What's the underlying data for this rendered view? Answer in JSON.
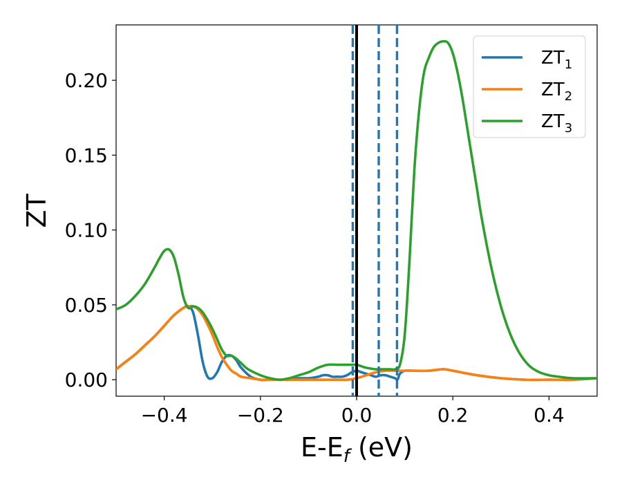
{
  "chart_data": {
    "type": "line",
    "xlabel": {
      "main": "E-E",
      "sub": "f",
      "unit": " (eV)"
    },
    "ylabel": "ZT",
    "xlim": [
      -0.5,
      0.5
    ],
    "ylim": [
      -0.011,
      0.237
    ],
    "xticks": [
      -0.4,
      -0.2,
      0.0,
      0.2,
      0.4
    ],
    "xtick_labels": [
      "−0.4",
      "−0.2",
      "0.0",
      "0.2",
      "0.4"
    ],
    "yticks": [
      0.0,
      0.05,
      0.1,
      0.15,
      0.2
    ],
    "ytick_labels": [
      "0.00",
      "0.05",
      "0.10",
      "0.15",
      "0.20"
    ],
    "grid": false,
    "legend_position": "top-right",
    "vlines": [
      {
        "x": 0.0,
        "style": "solid",
        "color": "#000000"
      },
      {
        "x": -0.008,
        "style": "dashed",
        "color": "#1f77b4"
      },
      {
        "x": 0.046,
        "style": "dashed",
        "color": "#1f77b4"
      },
      {
        "x": 0.084,
        "style": "dashed",
        "color": "#1f77b4"
      }
    ],
    "series": [
      {
        "name": "ZT",
        "sub": "1",
        "color": "#1f77b4",
        "x": [
          -0.5,
          -0.48,
          -0.46,
          -0.44,
          -0.42,
          -0.4,
          -0.38,
          -0.36,
          -0.35,
          -0.34,
          -0.33,
          -0.32,
          -0.31,
          -0.3,
          -0.29,
          -0.28,
          -0.27,
          -0.26,
          -0.25,
          -0.24,
          -0.22,
          -0.2,
          -0.18,
          -0.16,
          -0.14,
          -0.12,
          -0.1,
          -0.08,
          -0.07,
          -0.06,
          -0.05,
          -0.04,
          -0.03,
          -0.02,
          -0.01,
          0.0,
          0.01,
          0.02,
          0.03,
          0.04,
          0.05,
          0.06,
          0.07,
          0.08,
          0.085,
          0.09,
          0.1,
          0.12,
          0.15,
          0.18,
          0.2,
          0.25,
          0.3,
          0.35,
          0.4,
          0.45,
          0.5
        ],
        "y": [
          0.007,
          0.012,
          0.017,
          0.023,
          0.029,
          0.036,
          0.043,
          0.048,
          0.049,
          0.045,
          0.03,
          0.012,
          0.002,
          0.001,
          0.005,
          0.012,
          0.016,
          0.016,
          0.013,
          0.008,
          0.002,
          0.0,
          0.0,
          0.0,
          0.0,
          0.001,
          0.001,
          0.002,
          0.003,
          0.003,
          0.002,
          0.002,
          0.002,
          0.003,
          0.005,
          0.006,
          0.005,
          0.004,
          0.003,
          0.002,
          0.003,
          0.003,
          0.002,
          0.001,
          0.0,
          0.004,
          0.006,
          0.006,
          0.006,
          0.007,
          0.006,
          0.003,
          0.001,
          0.0,
          0.0,
          0.0,
          0.001
        ]
      },
      {
        "name": "ZT",
        "sub": "2",
        "color": "#ff7f0e",
        "x": [
          -0.5,
          -0.48,
          -0.46,
          -0.44,
          -0.42,
          -0.4,
          -0.38,
          -0.36,
          -0.35,
          -0.34,
          -0.33,
          -0.32,
          -0.31,
          -0.3,
          -0.29,
          -0.28,
          -0.27,
          -0.26,
          -0.25,
          -0.24,
          -0.22,
          -0.2,
          -0.18,
          -0.16,
          -0.14,
          -0.12,
          -0.1,
          -0.08,
          -0.06,
          -0.04,
          -0.02,
          0.0,
          0.02,
          0.04,
          0.06,
          0.08,
          0.1,
          0.12,
          0.15,
          0.18,
          0.2,
          0.25,
          0.3,
          0.35,
          0.4,
          0.45,
          0.5
        ],
        "y": [
          0.007,
          0.012,
          0.017,
          0.023,
          0.029,
          0.036,
          0.043,
          0.048,
          0.049,
          0.049,
          0.047,
          0.043,
          0.037,
          0.03,
          0.022,
          0.015,
          0.01,
          0.006,
          0.004,
          0.002,
          0.001,
          0.0,
          0.0,
          0.0,
          0.0,
          0.0,
          0.0,
          0.0,
          0.0,
          0.0,
          0.0,
          0.001,
          0.003,
          0.005,
          0.006,
          0.006,
          0.006,
          0.006,
          0.006,
          0.007,
          0.006,
          0.003,
          0.001,
          0.0,
          0.0,
          0.0,
          0.001
        ]
      },
      {
        "name": "ZT",
        "sub": "3",
        "color": "#2ca02c",
        "x": [
          -0.5,
          -0.48,
          -0.46,
          -0.44,
          -0.42,
          -0.41,
          -0.4,
          -0.39,
          -0.38,
          -0.37,
          -0.36,
          -0.35,
          -0.34,
          -0.33,
          -0.32,
          -0.31,
          -0.3,
          -0.29,
          -0.28,
          -0.27,
          -0.26,
          -0.25,
          -0.24,
          -0.23,
          -0.22,
          -0.2,
          -0.18,
          -0.16,
          -0.14,
          -0.12,
          -0.1,
          -0.08,
          -0.06,
          -0.04,
          -0.02,
          -0.01,
          0.0,
          0.01,
          0.02,
          0.04,
          0.06,
          0.07,
          0.08,
          0.09,
          0.1,
          0.11,
          0.12,
          0.13,
          0.14,
          0.15,
          0.16,
          0.17,
          0.18,
          0.19,
          0.2,
          0.21,
          0.22,
          0.23,
          0.24,
          0.25,
          0.26,
          0.28,
          0.3,
          0.32,
          0.34,
          0.36,
          0.38,
          0.4,
          0.42,
          0.45,
          0.5
        ],
        "y": [
          0.047,
          0.05,
          0.056,
          0.064,
          0.075,
          0.081,
          0.086,
          0.087,
          0.082,
          0.07,
          0.055,
          0.048,
          0.049,
          0.048,
          0.045,
          0.04,
          0.034,
          0.027,
          0.02,
          0.016,
          0.016,
          0.014,
          0.011,
          0.008,
          0.006,
          0.003,
          0.001,
          0.0,
          0.001,
          0.003,
          0.005,
          0.008,
          0.01,
          0.01,
          0.01,
          0.01,
          0.01,
          0.009,
          0.008,
          0.007,
          0.007,
          0.007,
          0.007,
          0.01,
          0.03,
          0.08,
          0.14,
          0.18,
          0.205,
          0.215,
          0.222,
          0.225,
          0.226,
          0.225,
          0.218,
          0.205,
          0.188,
          0.168,
          0.148,
          0.128,
          0.108,
          0.075,
          0.049,
          0.03,
          0.017,
          0.009,
          0.005,
          0.003,
          0.002,
          0.001,
          0.001
        ]
      }
    ]
  }
}
